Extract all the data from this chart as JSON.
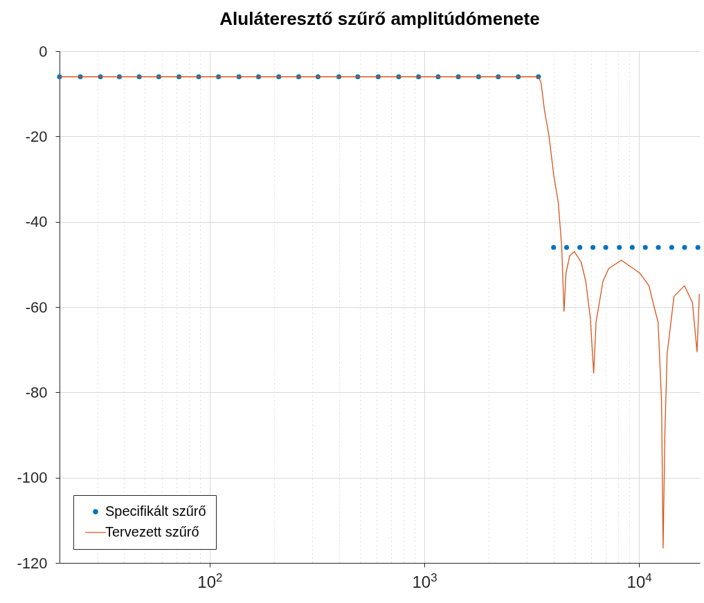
{
  "chart_data": {
    "type": "line",
    "title": "Aluláteresztő szűrő amplitúdómenete",
    "xlim": [
      20,
      19200
    ],
    "ylim": [
      -120,
      0
    ],
    "xticks": [
      {
        "value": 20,
        "label": null
      },
      {
        "value": 30,
        "label": null
      },
      {
        "value": 40,
        "label": null
      },
      {
        "value": 50,
        "label": null
      },
      {
        "value": 60,
        "label": null
      },
      {
        "value": 70,
        "label": null
      },
      {
        "value": 80,
        "label": null
      },
      {
        "value": 90,
        "label": null
      },
      {
        "value": 100,
        "label": "10$^{2}$"
      },
      {
        "value": 200,
        "label": null
      },
      {
        "value": 300,
        "label": null
      },
      {
        "value": 400,
        "label": null
      },
      {
        "value": 500,
        "label": null
      },
      {
        "value": 600,
        "label": null
      },
      {
        "value": 700,
        "label": null
      },
      {
        "value": 800,
        "label": null
      },
      {
        "value": 900,
        "label": null
      },
      {
        "value": 1000,
        "label": "10$^{3}$"
      },
      {
        "value": 2000,
        "label": null
      },
      {
        "value": 3000,
        "label": null
      },
      {
        "value": 4000,
        "label": null
      },
      {
        "value": 5000,
        "label": null
      },
      {
        "value": 6000,
        "label": null
      },
      {
        "value": 7000,
        "label": null
      },
      {
        "value": 8000,
        "label": null
      },
      {
        "value": 9000,
        "label": null
      },
      {
        "value": 10000,
        "label": "10$^{4}$"
      }
    ],
    "yticks": [
      0,
      -20,
      -40,
      -60,
      -80,
      -100,
      -120
    ],
    "log": "x",
    "grid": true,
    "legend": "bottom left",
    "series": [
      {
        "name": "Specifikált szűrő",
        "type": "scatter",
        "marker": "circle",
        "color": "#0072bd",
        "x": [
          20,
          25,
          31,
          38,
          47,
          58,
          72,
          89,
          110,
          137,
          169,
          210,
          260,
          320,
          400,
          490,
          610,
          760,
          940,
          1160,
          1440,
          1790,
          2210,
          2740,
          3400,
          4000,
          4600,
          5300,
          6100,
          7000,
          8100,
          9300,
          10700,
          12300,
          14200,
          16300,
          18800
        ],
        "values": [
          -6,
          -6,
          -6,
          -6,
          -6,
          -6,
          -6,
          -6,
          -6,
          -6,
          -6,
          -6,
          -6,
          -6,
          -6,
          -6,
          -6,
          -6,
          -6,
          -6,
          -6,
          -6,
          -6,
          -6,
          -6,
          -46,
          -46,
          -46,
          -46,
          -46,
          -46,
          -46,
          -46,
          -46,
          -46,
          -46,
          -46
        ]
      },
      {
        "name": "Tervezett szűrő",
        "type": "line",
        "color": "#d95319",
        "x": [
          20,
          1000,
          3300,
          3412,
          3499,
          3631,
          3811,
          4005,
          4207,
          4365,
          4474,
          4571,
          4755,
          5000,
          5380,
          5650,
          5930,
          6150,
          6310,
          6790,
          7220,
          8270,
          10070,
          11120,
          11970,
          12270,
          12730,
          12950,
          13200,
          13520,
          14550,
          16280,
          17740,
          18630,
          19100
        ],
        "values": [
          -6,
          -6,
          -6,
          -6,
          -7.5,
          -14,
          -20,
          -29,
          -35.5,
          -46,
          -61,
          -52,
          -48,
          -47,
          -49.5,
          -54,
          -62.5,
          -75.5,
          -63.5,
          -54,
          -51,
          -49,
          -52,
          -55,
          -61.5,
          -63.5,
          -82,
          -116.5,
          -89.5,
          -71,
          -57.5,
          -55,
          -59,
          -70.5,
          -57
        ]
      }
    ]
  }
}
